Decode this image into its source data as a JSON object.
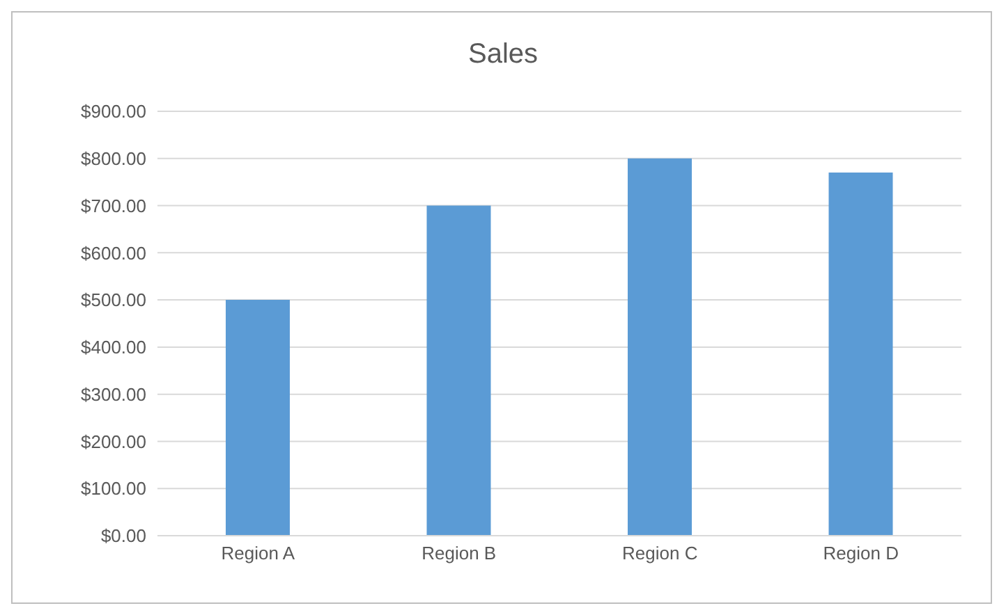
{
  "chart_data": {
    "type": "bar",
    "title": "Sales",
    "categories": [
      "Region A",
      "Region B",
      "Region C",
      "Region D"
    ],
    "values": [
      500,
      700,
      800,
      770
    ],
    "color": "#5b9bd5",
    "ylim": [
      0,
      900
    ],
    "yticks": [
      {
        "value": 0,
        "label": "$0.00"
      },
      {
        "value": 100,
        "label": "$100.00"
      },
      {
        "value": 200,
        "label": "$200.00"
      },
      {
        "value": 300,
        "label": "$300.00"
      },
      {
        "value": 400,
        "label": "$400.00"
      },
      {
        "value": 500,
        "label": "$500.00"
      },
      {
        "value": 600,
        "label": "$600.00"
      },
      {
        "value": 700,
        "label": "$700.00"
      },
      {
        "value": 800,
        "label": "$800.00"
      },
      {
        "value": 900,
        "label": "$900.00"
      }
    ],
    "grid": "y",
    "legend": false
  }
}
